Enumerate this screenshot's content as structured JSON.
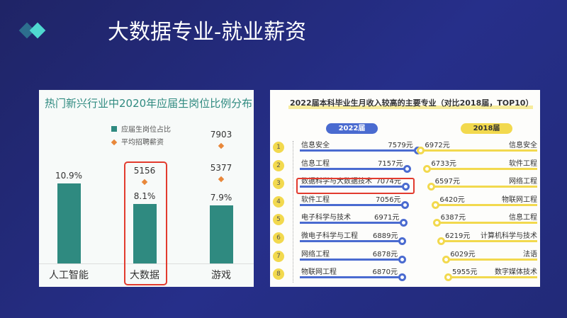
{
  "slide": {
    "title": "大数据专业-就业薪资",
    "accent_colors": [
      "#2d6e8e",
      "#4fd8d0"
    ]
  },
  "chart_data": [
    {
      "type": "bar",
      "title": "热门新兴行业中2020年应届生岗位比例分布",
      "categories": [
        "人工智能",
        "大数据",
        "游戏"
      ],
      "series": [
        {
          "name": "应届生岗位占比",
          "type": "bar",
          "values": [
            10.9,
            8.1,
            7.9
          ],
          "labels": [
            "10.9%",
            "8.1%",
            "7.9%"
          ],
          "color": "#2f8a80"
        },
        {
          "name": "平均招聘薪资",
          "type": "scatter",
          "values": [
            null,
            5156,
            5377
          ],
          "labels": [
            "",
            "5156",
            "5377"
          ],
          "color": "#e8873a"
        }
      ],
      "extra_points": [
        {
          "category": "游戏",
          "value": 7903,
          "label": "7903"
        }
      ],
      "highlight": "大数据",
      "highlight_color": "#e23b2e"
    },
    {
      "type": "table",
      "title": "2022届本科毕业生月收入较高的主要专业（对比2018届，TOP10）",
      "columns": [
        "2022届",
        "2018届"
      ],
      "colors": {
        "2022": "#4a6bd0",
        "2018": "#f2d94e"
      },
      "rows": [
        {
          "rank": "1",
          "major_2022": "信息安全",
          "salary_2022": "7579元",
          "v2022": 7579,
          "major_2018": "信息安全",
          "salary_2018": "6972元",
          "v2018": 6972
        },
        {
          "rank": "2",
          "major_2022": "信息工程",
          "salary_2022": "7157元",
          "v2022": 7157,
          "major_2018": "软件工程",
          "salary_2018": "6733元",
          "v2018": 6733
        },
        {
          "rank": "3",
          "major_2022": "数据科学与大数据技术",
          "salary_2022": "7074元",
          "v2022": 7074,
          "major_2018": "网络工程",
          "salary_2018": "6597元",
          "v2018": 6597
        },
        {
          "rank": "4",
          "major_2022": "软件工程",
          "salary_2022": "7056元",
          "v2022": 7056,
          "major_2018": "物联网工程",
          "salary_2018": "6420元",
          "v2018": 6420
        },
        {
          "rank": "5",
          "major_2022": "电子科学与技术",
          "salary_2022": "6971元",
          "v2022": 6971,
          "major_2018": "信息工程",
          "salary_2018": "6387元",
          "v2018": 6387
        },
        {
          "rank": "6",
          "major_2022": "微电子科学与工程",
          "salary_2022": "6889元",
          "v2022": 6889,
          "major_2018": "计算机科学与技术",
          "salary_2018": "6219元",
          "v2018": 6219
        },
        {
          "rank": "7",
          "major_2022": "网络工程",
          "salary_2022": "6878元",
          "v2022": 6878,
          "major_2018": "法语",
          "salary_2018": "6029元",
          "v2018": 6029
        },
        {
          "rank": "8",
          "major_2022": "物联网工程",
          "salary_2022": "6870元",
          "v2022": 6870,
          "major_2018": "数字媒体技术",
          "salary_2018": "5955元",
          "v2018": 5955
        }
      ],
      "highlight_rank": "3"
    }
  ]
}
